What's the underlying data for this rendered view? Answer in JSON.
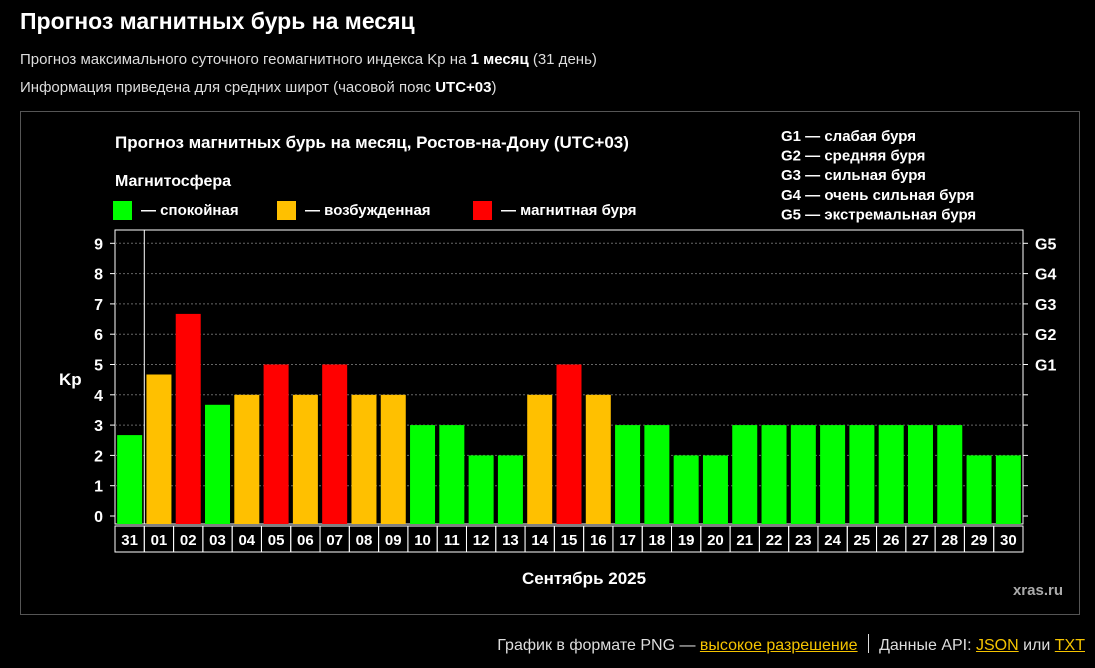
{
  "page": {
    "title": "Прогноз магнитных бурь на месяц",
    "sub1_prefix": "Прогноз максимального суточного геомагнитного индекса Kp на ",
    "sub1_bold": "1 месяц",
    "sub1_suffix": " (31 день)",
    "sub2_prefix": "Информация приведена для средних широт (часовой пояс ",
    "sub2_bold": "UTC+03",
    "sub2_suffix": ")"
  },
  "footer": {
    "png_text": "График в формате PNG — ",
    "hires_link": "высокое разрешение",
    "api_text": "Данные API: ",
    "json_link": "JSON",
    "or_text": " или ",
    "txt_link": "TXT"
  },
  "chart_data": {
    "type": "bar",
    "title": "Прогноз магнитных бурь на месяц, Ростов-на-Дону (UTC+03)",
    "legend_title": "Магнитосфера",
    "legend": [
      {
        "label": "— спокойная",
        "color": "#00ff00"
      },
      {
        "label": "— возбужденная",
        "color": "#ffc000"
      },
      {
        "label": "— магнитная буря",
        "color": "#ff0000"
      }
    ],
    "g_legend": [
      "G1 — слабая буря",
      "G2 — средняя буря",
      "G3 — сильная буря",
      "G4 — очень сильная буря",
      "G5 — экстремальная буря"
    ],
    "ylabel": "Kp",
    "xlabel": "Сентябрь 2025",
    "watermark": "xras.ru",
    "ylim": [
      0,
      9
    ],
    "yticks": [
      "0",
      "1",
      "2",
      "3",
      "4",
      "5",
      "6",
      "7",
      "8",
      "9"
    ],
    "g_ticks": [
      {
        "label": "G1",
        "kp": 5
      },
      {
        "label": "G2",
        "kp": 6
      },
      {
        "label": "G3",
        "kp": 7
      },
      {
        "label": "G4",
        "kp": 8
      },
      {
        "label": "G5",
        "kp": 9
      }
    ],
    "grid": true,
    "categories": [
      "31",
      "01",
      "02",
      "03",
      "04",
      "05",
      "06",
      "07",
      "08",
      "09",
      "10",
      "11",
      "12",
      "13",
      "14",
      "15",
      "16",
      "17",
      "18",
      "19",
      "20",
      "21",
      "22",
      "23",
      "24",
      "25",
      "26",
      "27",
      "28",
      "29",
      "30"
    ],
    "values": [
      2.67,
      4.67,
      6.67,
      3.67,
      4,
      5,
      4,
      5,
      4,
      4,
      3,
      3,
      2,
      2,
      4,
      5,
      4,
      3,
      3,
      2,
      2,
      3,
      3,
      3,
      3,
      3,
      3,
      3,
      3,
      2,
      2
    ],
    "colors": [
      "#00ff00",
      "#ffc000",
      "#ff0000",
      "#00ff00",
      "#ffc000",
      "#ff0000",
      "#ffc000",
      "#ff0000",
      "#ffc000",
      "#ffc000",
      "#00ff00",
      "#00ff00",
      "#00ff00",
      "#00ff00",
      "#ffc000",
      "#ff0000",
      "#ffc000",
      "#00ff00",
      "#00ff00",
      "#00ff00",
      "#00ff00",
      "#00ff00",
      "#00ff00",
      "#00ff00",
      "#00ff00",
      "#00ff00",
      "#00ff00",
      "#00ff00",
      "#00ff00",
      "#00ff00",
      "#00ff00"
    ]
  }
}
